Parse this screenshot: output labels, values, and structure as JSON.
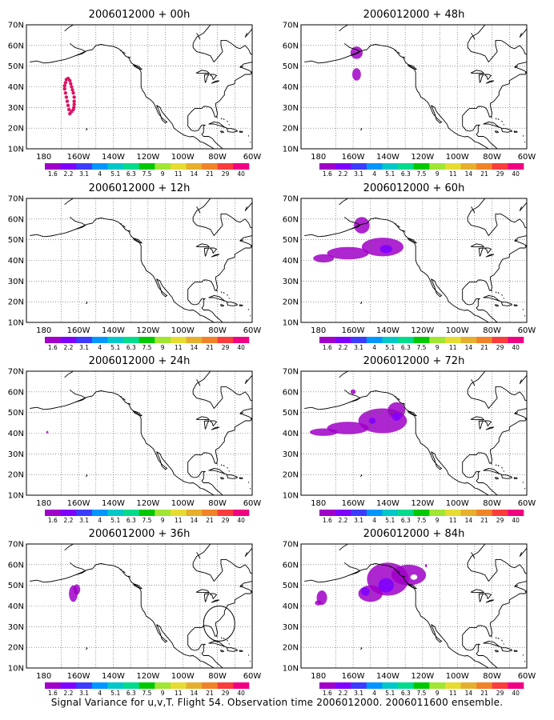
{
  "caption": "Signal Variance for u,v,T. Flight 54. Observation time 2006012000. 2006011600 ensemble.",
  "lat_labels": [
    "70N",
    "60N",
    "50N",
    "40N",
    "30N",
    "20N",
    "10N"
  ],
  "lon_labels": [
    "180",
    "160W",
    "140W",
    "120W",
    "100W",
    "80W",
    "60W"
  ],
  "colorbar": {
    "labels": [
      "1.6",
      "2.2",
      "3.1",
      "4",
      "5.1",
      "6.3",
      "7.5",
      "9",
      "11",
      "14",
      "21",
      "29",
      "40"
    ],
    "colors": [
      "#a000c8",
      "#8000ff",
      "#3c3cff",
      "#0096ff",
      "#00c8c8",
      "#00dc8c",
      "#00c800",
      "#a0e632",
      "#e6dc32",
      "#e6af2d",
      "#f08228",
      "#fa3c3c",
      "#f00082"
    ]
  },
  "panels": [
    {
      "title": "2006012000 + 00h",
      "blobs": []
    },
    {
      "title": "2006012000 + 12h",
      "blobs": []
    },
    {
      "title": "2006012000 + 24h",
      "blobs": [
        {
          "lon": 178,
          "lat": 40.5,
          "rlon": 0.6,
          "rlat": 0.6,
          "level": 0
        }
      ]
    },
    {
      "title": "2006012000 + 36h",
      "blobs": [
        {
          "lon": 163,
          "lat": 46,
          "rlon": 2.5,
          "rlat": 4,
          "level": 0
        },
        {
          "lon": 161,
          "lat": 48,
          "rlon": 2,
          "rlat": 2.5,
          "level": 0
        }
      ]
    },
    {
      "title": "2006012000 + 48h",
      "blobs": [
        {
          "lon": 158,
          "lat": 56.5,
          "rlon": 3.5,
          "rlat": 3,
          "level": 0
        },
        {
          "lon": 158,
          "lat": 46,
          "rlon": 2.5,
          "rlat": 3,
          "level": 0
        }
      ]
    },
    {
      "title": "2006012000 + 60h",
      "blobs": [
        {
          "lon": 155,
          "lat": 57,
          "rlon": 4.5,
          "rlat": 4,
          "level": 0
        },
        {
          "lon": 143,
          "lat": 46.5,
          "rlon": 12,
          "rlat": 4.5,
          "level": 0
        },
        {
          "lon": 163,
          "lat": 43.5,
          "rlon": 12,
          "rlat": 3,
          "level": 0
        },
        {
          "lon": 177,
          "lat": 41,
          "rlon": 6,
          "rlat": 2,
          "level": 0
        },
        {
          "lon": 141,
          "lat": 45.5,
          "rlon": 3.5,
          "rlat": 2,
          "level": 1
        }
      ]
    },
    {
      "title": "2006012000 + 72h",
      "blobs": [
        {
          "lon": 160,
          "lat": 60,
          "rlon": 1.5,
          "rlat": 1.2,
          "level": 0
        },
        {
          "lon": 143,
          "lat": 46,
          "rlon": 14,
          "rlat": 6,
          "level": 0
        },
        {
          "lon": 163,
          "lat": 42.5,
          "rlon": 12,
          "rlat": 3,
          "level": 0
        },
        {
          "lon": 177,
          "lat": 40.5,
          "rlon": 8,
          "rlat": 1.8,
          "level": 0
        },
        {
          "lon": 135,
          "lat": 51,
          "rlon": 5,
          "rlat": 4,
          "level": 0
        },
        {
          "lon": 135,
          "lat": 48,
          "rlon": 2.5,
          "rlat": 2,
          "level": 1
        },
        {
          "lon": 149,
          "lat": 46,
          "rlon": 2,
          "rlat": 1.5,
          "level": 1
        }
      ]
    },
    {
      "title": "2006012000 + 84h",
      "blobs": [
        {
          "lon": 140,
          "lat": 53,
          "rlon": 12,
          "rlat": 8,
          "level": 0
        },
        {
          "lon": 128,
          "lat": 55,
          "rlon": 10,
          "rlat": 5,
          "level": 0
        },
        {
          "lon": 150,
          "lat": 46,
          "rlon": 7,
          "rlat": 4,
          "level": 0
        },
        {
          "lon": 178,
          "lat": 44,
          "rlon": 3,
          "rlat": 3.5,
          "level": 0
        },
        {
          "lon": 180,
          "lat": 41.5,
          "rlon": 2,
          "rlat": 1.2,
          "level": 0
        },
        {
          "lon": 141,
          "lat": 50,
          "rlon": 4.5,
          "rlat": 3.5,
          "level": 1
        },
        {
          "lon": 153,
          "lat": 47,
          "rlon": 2.5,
          "rlat": 2,
          "level": 1
        },
        {
          "lon": 118,
          "lat": 59.5,
          "rlon": 0.6,
          "rlat": 0.8,
          "level": 0
        }
      ]
    }
  ]
}
